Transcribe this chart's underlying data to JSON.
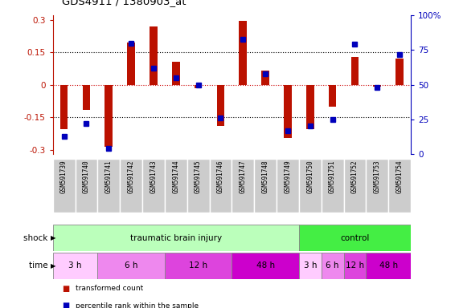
{
  "title": "GDS4911 / 1380903_at",
  "samples": [
    "GSM591739",
    "GSM591740",
    "GSM591741",
    "GSM591742",
    "GSM591743",
    "GSM591744",
    "GSM591745",
    "GSM591746",
    "GSM591747",
    "GSM591748",
    "GSM591749",
    "GSM591750",
    "GSM591751",
    "GSM591752",
    "GSM591753",
    "GSM591754"
  ],
  "bar_values": [
    -0.205,
    -0.115,
    -0.285,
    0.195,
    0.27,
    0.105,
    -0.015,
    -0.19,
    0.295,
    0.065,
    -0.245,
    -0.205,
    -0.1,
    0.13,
    -0.01,
    0.12
  ],
  "dot_values": [
    13,
    22,
    4,
    80,
    62,
    55,
    50,
    26,
    83,
    58,
    17,
    20,
    25,
    79,
    48,
    72
  ],
  "bar_color": "#bb1100",
  "dot_color": "#0000bb",
  "ylim": [
    -0.32,
    0.32
  ],
  "yticks": [
    -0.3,
    -0.15,
    0.0,
    0.15,
    0.3
  ],
  "ytick_labels": [
    "-0.3",
    "-0.15",
    "0",
    "0.15",
    "0.3"
  ],
  "y2ticks": [
    0,
    25,
    50,
    75,
    100
  ],
  "y2tick_labels": [
    "0",
    "25",
    "50",
    "75",
    "100%"
  ],
  "dotted_lines": [
    -0.15,
    0.0,
    0.15
  ],
  "shock_groups": [
    {
      "label": "traumatic brain injury",
      "start": 0,
      "end": 11,
      "color": "#bbffbb"
    },
    {
      "label": "control",
      "start": 11,
      "end": 16,
      "color": "#44ee44"
    }
  ],
  "time_groups": [
    {
      "label": "3 h",
      "start": 0,
      "end": 2,
      "color": "#ffccff"
    },
    {
      "label": "6 h",
      "start": 2,
      "end": 5,
      "color": "#ee88ee"
    },
    {
      "label": "12 h",
      "start": 5,
      "end": 8,
      "color": "#dd44dd"
    },
    {
      "label": "48 h",
      "start": 8,
      "end": 11,
      "color": "#cc00cc"
    },
    {
      "label": "3 h",
      "start": 11,
      "end": 12,
      "color": "#ffccff"
    },
    {
      "label": "6 h",
      "start": 12,
      "end": 13,
      "color": "#ee88ee"
    },
    {
      "label": "12 h",
      "start": 13,
      "end": 14,
      "color": "#dd44dd"
    },
    {
      "label": "48 h",
      "start": 14,
      "end": 16,
      "color": "#cc00cc"
    }
  ],
  "legend_items": [
    {
      "label": "transformed count",
      "color": "#bb1100"
    },
    {
      "label": "percentile rank within the sample",
      "color": "#0000bb"
    }
  ],
  "bar_width": 0.35,
  "dot_size": 4
}
